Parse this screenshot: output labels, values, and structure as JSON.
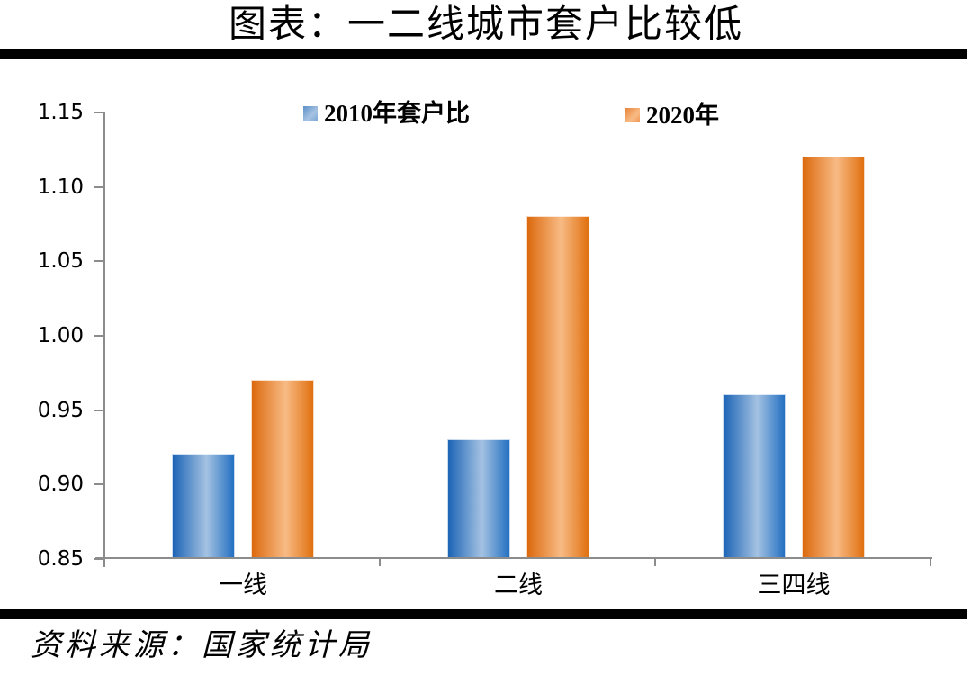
{
  "page": {
    "background": "#ffffff"
  },
  "title": "图表：一二线城市套户比较低",
  "source_note": "资料来源：国家统计局",
  "colors": {
    "bar_blue_edge": "#1c64b6",
    "bar_blue_center": "#a4c2e2",
    "bar_orange_edge": "#dc690e",
    "bar_orange_center": "#f8bb85",
    "axis_gray": "#8c8c8c",
    "rule_black": "#000000",
    "text_black": "#000000"
  },
  "chart_data": {
    "type": "bar",
    "title": "图表：一二线城市套户比较低",
    "categories": [
      "一线",
      "二线",
      "三四线"
    ],
    "series": [
      {
        "name": "2010年套户比",
        "color": "#2e75c3",
        "values": [
          0.92,
          0.93,
          0.96
        ]
      },
      {
        "name": "2020年",
        "color": "#ed7d31",
        "values": [
          0.97,
          1.08,
          1.12
        ]
      }
    ],
    "xlabel": "",
    "ylabel": "",
    "ylim": [
      0.85,
      1.15
    ],
    "ytick_labels": [
      "0.85",
      "0.90",
      "0.95",
      "1.00",
      "1.05",
      "1.10",
      "1.15"
    ],
    "grid": false,
    "legend_position": "top",
    "source": "资料来源：国家统计局"
  }
}
